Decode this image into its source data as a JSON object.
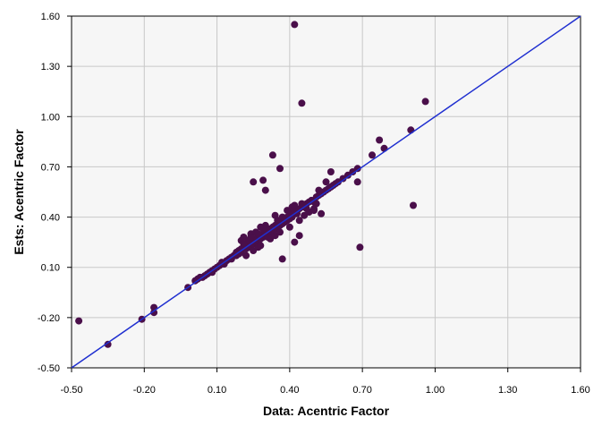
{
  "chart_data": {
    "type": "scatter",
    "xlabel": "Data: Acentric Factor",
    "ylabel": "Ests: Acentric Factor",
    "xlim": [
      -0.5,
      1.6
    ],
    "ylim": [
      -0.5,
      1.6
    ],
    "x_ticks": [
      "-0.50",
      "-0.20",
      "0.10",
      "0.40",
      "0.70",
      "1.00",
      "1.30",
      "1.60"
    ],
    "y_ticks": [
      "-0.50",
      "-0.20",
      "0.10",
      "0.40",
      "0.70",
      "1.00",
      "1.30",
      "1.60"
    ],
    "grid": true,
    "reference_line": {
      "from": [
        -0.5,
        -0.5
      ],
      "to": [
        1.6,
        1.6
      ]
    },
    "colors": {
      "points": "#4a0f4a",
      "line": "#1f2fd0",
      "grid": "#c8c8c8",
      "plot_bg": "#f6f6f6"
    },
    "points": [
      [
        -0.47,
        -0.22
      ],
      [
        -0.35,
        -0.36
      ],
      [
        -0.21,
        -0.21
      ],
      [
        -0.16,
        -0.17
      ],
      [
        -0.16,
        -0.14
      ],
      [
        -0.02,
        -0.02
      ],
      [
        0.01,
        0.02
      ],
      [
        0.02,
        0.03
      ],
      [
        0.03,
        0.04
      ],
      [
        0.04,
        0.04
      ],
      [
        0.05,
        0.05
      ],
      [
        0.06,
        0.06
      ],
      [
        0.07,
        0.07
      ],
      [
        0.08,
        0.07
      ],
      [
        0.09,
        0.09
      ],
      [
        0.1,
        0.1
      ],
      [
        0.11,
        0.11
      ],
      [
        0.12,
        0.12
      ],
      [
        0.13,
        0.12
      ],
      [
        0.14,
        0.14
      ],
      [
        0.15,
        0.15
      ],
      [
        0.16,
        0.16
      ],
      [
        0.17,
        0.17
      ],
      [
        0.18,
        0.17
      ],
      [
        0.18,
        0.19
      ],
      [
        0.19,
        0.2
      ],
      [
        0.2,
        0.19
      ],
      [
        0.2,
        0.21
      ],
      [
        0.21,
        0.22
      ],
      [
        0.22,
        0.21
      ],
      [
        0.22,
        0.23
      ],
      [
        0.23,
        0.24
      ],
      [
        0.23,
        0.22
      ],
      [
        0.24,
        0.25
      ],
      [
        0.24,
        0.23
      ],
      [
        0.25,
        0.26
      ],
      [
        0.25,
        0.24
      ],
      [
        0.26,
        0.27
      ],
      [
        0.26,
        0.25
      ],
      [
        0.27,
        0.28
      ],
      [
        0.27,
        0.26
      ],
      [
        0.28,
        0.29
      ],
      [
        0.28,
        0.27
      ],
      [
        0.29,
        0.3
      ],
      [
        0.29,
        0.28
      ],
      [
        0.3,
        0.31
      ],
      [
        0.3,
        0.29
      ],
      [
        0.31,
        0.32
      ],
      [
        0.31,
        0.3
      ],
      [
        0.32,
        0.33
      ],
      [
        0.32,
        0.31
      ],
      [
        0.33,
        0.34
      ],
      [
        0.33,
        0.32
      ],
      [
        0.34,
        0.35
      ],
      [
        0.34,
        0.33
      ],
      [
        0.35,
        0.36
      ],
      [
        0.35,
        0.34
      ],
      [
        0.36,
        0.37
      ],
      [
        0.36,
        0.35
      ],
      [
        0.37,
        0.38
      ],
      [
        0.37,
        0.36
      ],
      [
        0.38,
        0.39
      ],
      [
        0.38,
        0.37
      ],
      [
        0.39,
        0.4
      ],
      [
        0.39,
        0.38
      ],
      [
        0.4,
        0.41
      ],
      [
        0.4,
        0.39
      ],
      [
        0.41,
        0.42
      ],
      [
        0.41,
        0.4
      ],
      [
        0.42,
        0.43
      ],
      [
        0.43,
        0.44
      ],
      [
        0.43,
        0.42
      ],
      [
        0.44,
        0.45
      ],
      [
        0.45,
        0.46
      ],
      [
        0.46,
        0.47
      ],
      [
        0.47,
        0.48
      ],
      [
        0.48,
        0.49
      ],
      [
        0.49,
        0.5
      ],
      [
        0.5,
        0.49
      ],
      [
        0.51,
        0.52
      ],
      [
        0.52,
        0.53
      ],
      [
        0.53,
        0.54
      ],
      [
        0.54,
        0.55
      ],
      [
        0.55,
        0.56
      ],
      [
        0.56,
        0.57
      ],
      [
        0.57,
        0.58
      ],
      [
        0.58,
        0.59
      ],
      [
        0.59,
        0.6
      ],
      [
        0.6,
        0.61
      ],
      [
        0.62,
        0.63
      ],
      [
        0.64,
        0.65
      ],
      [
        0.66,
        0.67
      ],
      [
        0.68,
        0.69
      ],
      [
        0.2,
        0.26
      ],
      [
        0.21,
        0.28
      ],
      [
        0.24,
        0.3
      ],
      [
        0.26,
        0.31
      ],
      [
        0.28,
        0.34
      ],
      [
        0.3,
        0.35
      ],
      [
        0.22,
        0.17
      ],
      [
        0.25,
        0.2
      ],
      [
        0.27,
        0.22
      ],
      [
        0.32,
        0.27
      ],
      [
        0.34,
        0.29
      ],
      [
        0.36,
        0.31
      ],
      [
        0.4,
        0.34
      ],
      [
        0.44,
        0.38
      ],
      [
        0.46,
        0.41
      ],
      [
        0.48,
        0.43
      ],
      [
        0.5,
        0.45
      ],
      [
        0.25,
        0.27
      ],
      [
        0.35,
        0.38
      ],
      [
        0.45,
        0.48
      ],
      [
        0.52,
        0.56
      ],
      [
        0.55,
        0.61
      ],
      [
        0.57,
        0.67
      ],
      [
        0.42,
        1.55
      ],
      [
        0.45,
        1.08
      ],
      [
        0.96,
        1.09
      ],
      [
        0.9,
        0.92
      ],
      [
        0.77,
        0.86
      ],
      [
        0.79,
        0.81
      ],
      [
        0.74,
        0.77
      ],
      [
        0.68,
        0.61
      ],
      [
        0.69,
        0.22
      ],
      [
        0.91,
        0.47
      ],
      [
        0.33,
        0.77
      ],
      [
        0.36,
        0.69
      ],
      [
        0.25,
        0.61
      ],
      [
        0.29,
        0.62
      ],
      [
        0.3,
        0.56
      ],
      [
        0.37,
        0.15
      ],
      [
        0.42,
        0.25
      ],
      [
        0.44,
        0.29
      ],
      [
        0.5,
        0.44
      ],
      [
        0.53,
        0.42
      ],
      [
        0.28,
        0.23
      ],
      [
        0.32,
        0.29
      ],
      [
        0.34,
        0.41
      ],
      [
        0.39,
        0.44
      ],
      [
        0.41,
        0.46
      ],
      [
        0.08,
        0.08
      ],
      [
        0.12,
        0.13
      ],
      [
        0.16,
        0.15
      ],
      [
        0.19,
        0.18
      ],
      [
        0.23,
        0.26
      ],
      [
        0.27,
        0.3
      ],
      [
        0.31,
        0.28
      ],
      [
        0.37,
        0.4
      ],
      [
        0.42,
        0.47
      ],
      [
        0.47,
        0.45
      ],
      [
        0.51,
        0.48
      ],
      [
        0.21,
        0.24
      ],
      [
        0.24,
        0.28
      ],
      [
        0.29,
        0.33
      ]
    ]
  }
}
